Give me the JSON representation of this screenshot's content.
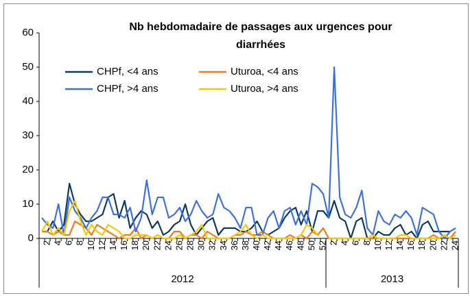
{
  "chart_data": {
    "type": "line",
    "title": [
      "Nb hebdomadaire de passages aux urgences pour",
      "diarrhées"
    ],
    "category_groups": [
      {
        "label": "2012",
        "categories": [
          null,
          "2",
          null,
          "4",
          null,
          "6",
          null,
          "8",
          null,
          "10",
          null,
          "12",
          null,
          "14",
          null,
          "16",
          null,
          "18",
          null,
          "20",
          null,
          "22",
          null,
          "24",
          null,
          "26",
          null,
          "28",
          null,
          "30",
          null,
          "32",
          null,
          "34",
          null,
          "36",
          null,
          "38",
          null,
          "40",
          null,
          "42",
          null,
          "44",
          null,
          "46",
          null,
          "48",
          null,
          "50",
          null,
          "52"
        ]
      },
      {
        "label": "2013",
        "categories": [
          null,
          "2",
          null,
          "4",
          null,
          "6",
          null,
          "8",
          null,
          "10",
          null,
          "12",
          null,
          "14",
          null,
          "16",
          null,
          "18",
          null,
          "20",
          null,
          "22",
          null,
          "24"
        ]
      }
    ],
    "series": [
      {
        "name": "CHPf, <4 ans",
        "color": "#0b3a5e",
        "values": [
          2,
          2,
          5,
          2,
          4,
          16,
          10,
          7,
          5,
          5,
          6,
          7,
          12,
          13,
          6,
          11,
          3,
          6,
          8,
          7,
          3,
          5,
          1,
          2,
          4,
          5,
          10,
          4,
          1,
          3,
          5,
          6,
          1,
          3,
          3,
          3,
          2,
          2,
          3,
          5,
          2,
          1,
          2,
          3,
          6,
          8,
          9,
          4,
          8,
          2,
          8,
          8,
          6,
          11,
          6,
          5,
          0,
          5,
          6,
          0,
          0,
          2,
          1,
          1,
          3,
          4,
          1,
          2,
          0,
          4,
          5,
          2,
          2,
          2,
          2,
          3
        ]
      },
      {
        "name": "Uturoa, <4 ans",
        "color": "#f07a1a",
        "values": [
          2,
          2,
          1,
          2,
          1,
          1,
          5,
          4,
          3,
          1,
          4,
          3,
          2,
          1,
          0,
          1,
          1,
          3,
          0,
          1,
          0,
          1,
          0,
          0,
          2,
          2,
          0,
          1,
          1,
          0,
          2,
          1,
          0,
          0,
          0,
          1,
          1,
          2,
          1,
          1,
          2,
          1,
          0,
          0,
          0,
          1,
          0,
          1,
          0,
          2,
          1,
          3,
          0,
          0,
          0,
          0,
          0,
          0,
          0,
          0,
          0,
          0,
          0,
          0,
          0,
          0,
          0,
          0,
          0,
          0,
          0,
          1,
          0,
          1,
          0,
          2
        ]
      },
      {
        "name": "CHPf, >4 ans",
        "color": "#3e6fe0",
        "values": [
          6,
          4,
          3,
          10,
          1,
          12,
          8,
          6,
          3,
          6,
          8,
          12,
          12,
          7,
          7,
          6,
          9,
          2,
          6,
          17,
          7,
          12,
          12,
          6,
          7,
          9,
          5,
          7,
          11,
          8,
          6,
          7,
          13,
          9,
          8,
          6,
          3,
          9,
          9,
          1,
          1,
          6,
          8,
          3,
          8,
          9,
          4,
          8,
          4,
          16,
          15,
          13,
          6,
          50,
          12,
          7,
          6,
          9,
          14,
          3,
          1,
          8,
          5,
          4,
          7,
          6,
          8,
          6,
          1,
          9,
          8,
          7,
          2,
          0,
          2,
          3
        ]
      },
      {
        "name": "Uturoa, >4 ans",
        "color": "#f5c800",
        "values": [
          2,
          5,
          1,
          3,
          1,
          8,
          11,
          5,
          1,
          4,
          2,
          1,
          4,
          3,
          2,
          0,
          0,
          1,
          1,
          1,
          0,
          1,
          0,
          0,
          0,
          1,
          0,
          1,
          2,
          4,
          0,
          0,
          0,
          0,
          0,
          1,
          2,
          4,
          1,
          0,
          1,
          0,
          0,
          0,
          0,
          0,
          0,
          1,
          4,
          3,
          1,
          null,
          0,
          0,
          0,
          0,
          0,
          0,
          0,
          0,
          1,
          0,
          0,
          0,
          0,
          1,
          1,
          0,
          0,
          0,
          0,
          0,
          0,
          1,
          0,
          1
        ]
      }
    ],
    "ylim": [
      0,
      60
    ],
    "yticks": [
      0,
      10,
      20,
      30,
      40,
      50,
      60
    ],
    "grid": false
  }
}
